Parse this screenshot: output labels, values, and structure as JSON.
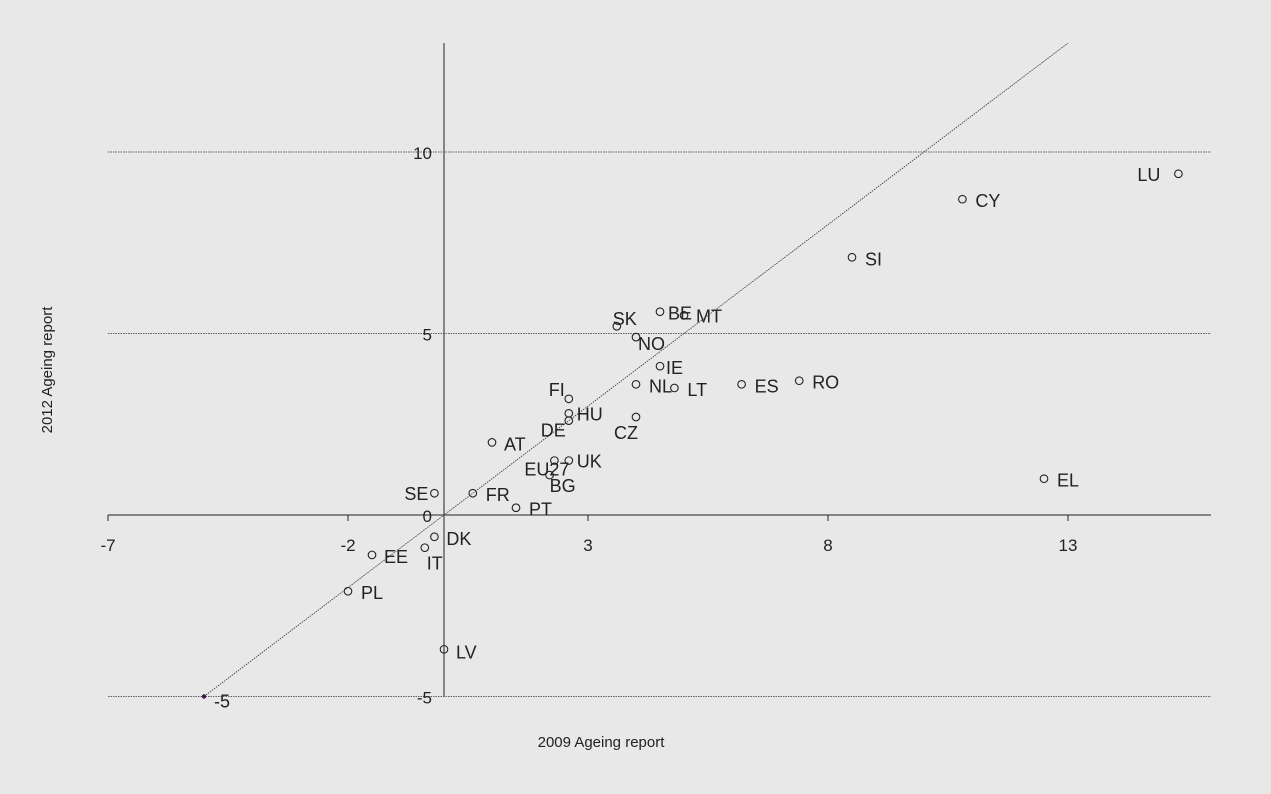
{
  "chart_data": {
    "type": "scatter",
    "title": "",
    "xlabel": "2009 Ageing report",
    "ylabel": "2012 Ageing report",
    "xlim": [
      -7,
      16.0
    ],
    "ylim": [
      -5.2,
      13.0
    ],
    "x_ticks": [
      -7,
      -2,
      3,
      8,
      13
    ],
    "y_ticks": [
      -5,
      0,
      5,
      10
    ],
    "x_tick_labels": [
      "-7",
      "-2",
      "3",
      "8",
      "13"
    ],
    "y_tick_labels": [
      "-5",
      "0",
      "5",
      "10"
    ],
    "grid": "horizontal at y tick values",
    "reference_line": "45-degree line y = x",
    "points": [
      {
        "label": "LU",
        "x": 15.3,
        "y": 9.4
      },
      {
        "label": "CY",
        "x": 10.8,
        "y": 8.7
      },
      {
        "label": "SI",
        "x": 8.5,
        "y": 7.1
      },
      {
        "label": "EL",
        "x": 12.5,
        "y": 1.0
      },
      {
        "label": "RO",
        "x": 7.4,
        "y": 3.7
      },
      {
        "label": "ES",
        "x": 6.2,
        "y": 3.6
      },
      {
        "label": "MT",
        "x": 5.0,
        "y": 5.5
      },
      {
        "label": "BE",
        "x": 4.5,
        "y": 5.6
      },
      {
        "label": "SK",
        "x": 3.6,
        "y": 5.2
      },
      {
        "label": "NO",
        "x": 4.0,
        "y": 4.9
      },
      {
        "label": "IE",
        "x": 4.5,
        "y": 4.1
      },
      {
        "label": "NL",
        "x": 4.0,
        "y": 3.6
      },
      {
        "label": "LT",
        "x": 4.8,
        "y": 3.5
      },
      {
        "label": "FI",
        "x": 2.6,
        "y": 3.2
      },
      {
        "label": "HU",
        "x": 2.6,
        "y": 2.8
      },
      {
        "label": "DE",
        "x": 2.6,
        "y": 2.6
      },
      {
        "label": "CZ",
        "x": 4.0,
        "y": 2.7
      },
      {
        "label": "AT",
        "x": 1.0,
        "y": 2.0
      },
      {
        "label": "EU27",
        "x": 2.3,
        "y": 1.5
      },
      {
        "label": "UK",
        "x": 2.6,
        "y": 1.5
      },
      {
        "label": "BG",
        "x": 2.2,
        "y": 1.1
      },
      {
        "label": "SE",
        "x": -0.2,
        "y": 0.6
      },
      {
        "label": "FR",
        "x": 0.6,
        "y": 0.6
      },
      {
        "label": "PT",
        "x": 1.5,
        "y": 0.2
      },
      {
        "label": "DK",
        "x": -0.2,
        "y": -0.6
      },
      {
        "label": "IT",
        "x": -0.4,
        "y": -0.9
      },
      {
        "label": "EE",
        "x": -1.5,
        "y": -1.1
      },
      {
        "label": "PL",
        "x": -2.0,
        "y": -2.1
      },
      {
        "label": "LV",
        "x": 0.0,
        "y": -3.7
      },
      {
        "label": "-5",
        "x": -5.0,
        "y": -5.0
      }
    ]
  }
}
